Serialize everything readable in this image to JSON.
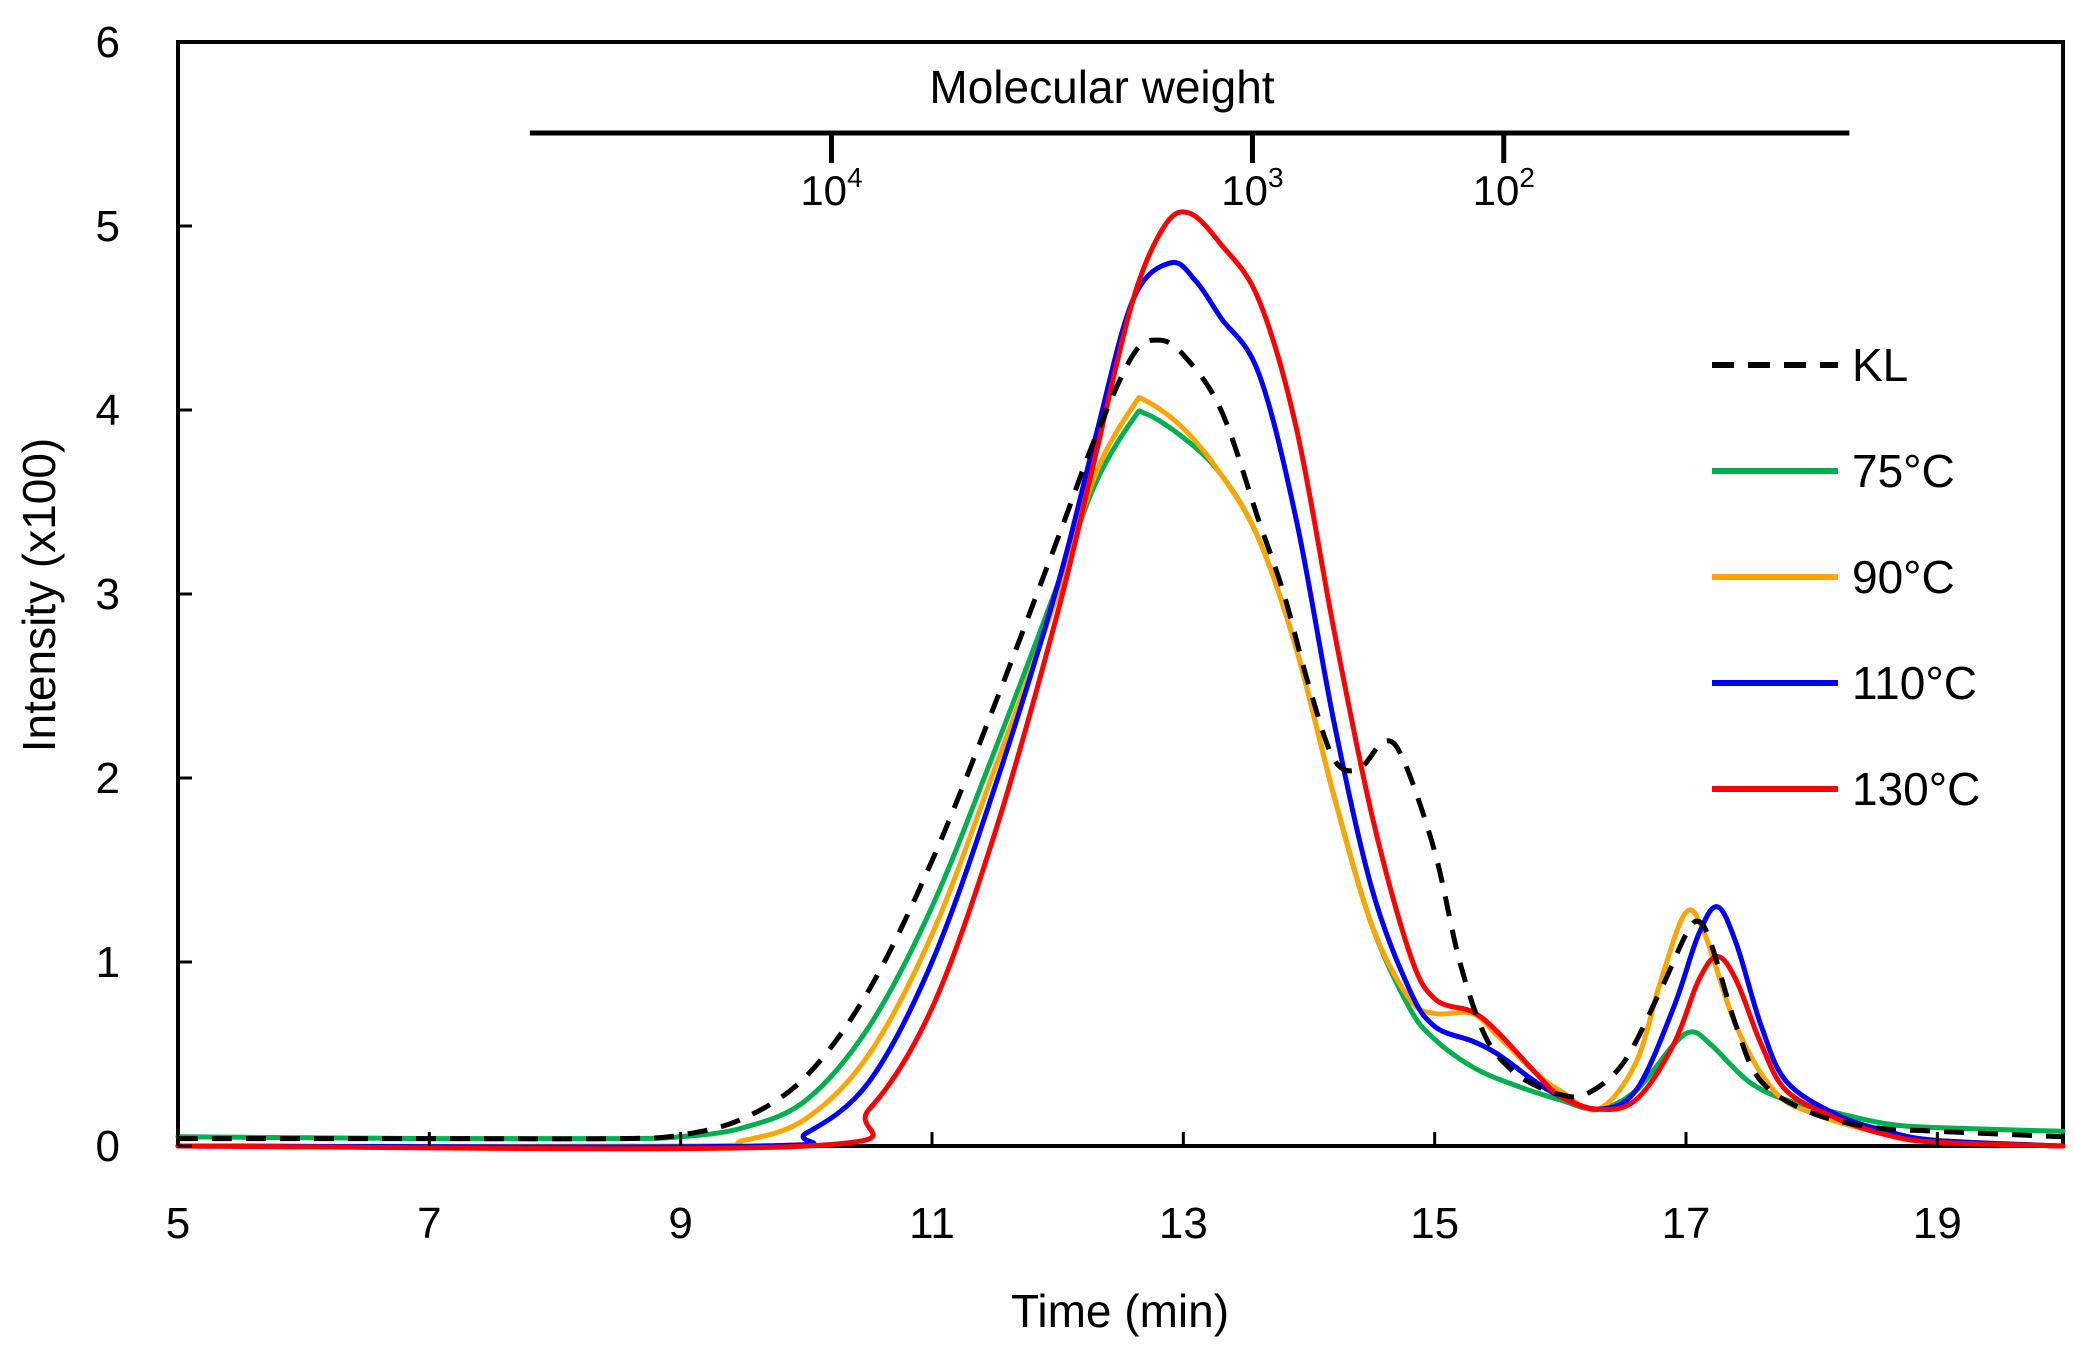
{
  "chart_data": {
    "type": "line",
    "xlabel": "Time (min)",
    "ylabel": "Intensity (x100)",
    "xlim": [
      5,
      20
    ],
    "ylim": [
      0,
      6
    ],
    "xticks": [
      5,
      7,
      9,
      11,
      13,
      15,
      17,
      19
    ],
    "yticks": [
      0,
      1,
      2,
      3,
      4,
      5,
      6
    ],
    "grid": false,
    "legend_position": "right",
    "secondary_axis": {
      "title": "Molecular weight",
      "range_time": [
        7.8,
        18.3
      ],
      "ticks": [
        {
          "base": "10",
          "exp": "4",
          "time": 10.2
        },
        {
          "base": "10",
          "exp": "3",
          "time": 13.55
        },
        {
          "base": "10",
          "exp": "2",
          "time": 15.55
        }
      ]
    },
    "series": [
      {
        "name": "KL",
        "color": "#000000",
        "dashed": true,
        "points": [
          [
            5,
            0.04
          ],
          [
            7,
            0.04
          ],
          [
            8.5,
            0.04
          ],
          [
            9,
            0.06
          ],
          [
            9.5,
            0.15
          ],
          [
            10,
            0.38
          ],
          [
            10.5,
            0.85
          ],
          [
            11,
            1.55
          ],
          [
            11.5,
            2.4
          ],
          [
            12,
            3.3
          ],
          [
            12.3,
            3.85
          ],
          [
            12.6,
            4.3
          ],
          [
            12.8,
            4.38
          ],
          [
            13,
            4.3
          ],
          [
            13.3,
            4.0
          ],
          [
            13.6,
            3.4
          ],
          [
            13.8,
            3.0
          ],
          [
            14,
            2.5
          ],
          [
            14.2,
            2.1
          ],
          [
            14.4,
            2.05
          ],
          [
            14.6,
            2.2
          ],
          [
            14.75,
            2.1
          ],
          [
            15,
            1.6
          ],
          [
            15.2,
            1.0
          ],
          [
            15.4,
            0.6
          ],
          [
            15.6,
            0.42
          ],
          [
            15.8,
            0.33
          ],
          [
            16,
            0.28
          ],
          [
            16.2,
            0.28
          ],
          [
            16.5,
            0.45
          ],
          [
            16.8,
            0.85
          ],
          [
            17,
            1.15
          ],
          [
            17.1,
            1.22
          ],
          [
            17.2,
            1.1
          ],
          [
            17.4,
            0.65
          ],
          [
            17.6,
            0.35
          ],
          [
            18,
            0.18
          ],
          [
            18.5,
            0.1
          ],
          [
            19,
            0.08
          ],
          [
            20,
            0.05
          ]
        ]
      },
      {
        "name": "75°C",
        "color": "#00b050",
        "dashed": false,
        "points": [
          [
            5,
            0.05
          ],
          [
            7,
            0.04
          ],
          [
            8.5,
            0.04
          ],
          [
            9,
            0.05
          ],
          [
            9.5,
            0.1
          ],
          [
            10,
            0.25
          ],
          [
            10.5,
            0.65
          ],
          [
            11,
            1.3
          ],
          [
            11.5,
            2.15
          ],
          [
            12,
            3.05
          ],
          [
            12.3,
            3.6
          ],
          [
            12.6,
            3.95
          ],
          [
            12.7,
            3.98
          ],
          [
            13,
            3.85
          ],
          [
            13.3,
            3.65
          ],
          [
            13.6,
            3.3
          ],
          [
            13.9,
            2.7
          ],
          [
            14.2,
            1.9
          ],
          [
            14.5,
            1.2
          ],
          [
            14.8,
            0.75
          ],
          [
            15,
            0.58
          ],
          [
            15.3,
            0.43
          ],
          [
            15.6,
            0.34
          ],
          [
            16,
            0.25
          ],
          [
            16.3,
            0.2
          ],
          [
            16.6,
            0.3
          ],
          [
            16.9,
            0.55
          ],
          [
            17.05,
            0.62
          ],
          [
            17.2,
            0.55
          ],
          [
            17.5,
            0.35
          ],
          [
            17.8,
            0.25
          ],
          [
            18.2,
            0.18
          ],
          [
            18.6,
            0.12
          ],
          [
            19,
            0.1
          ],
          [
            20,
            0.08
          ]
        ]
      },
      {
        "name": "90°C",
        "color": "#ffa500",
        "dashed": false,
        "points": [
          [
            5,
            0.0
          ],
          [
            9,
            0.0
          ],
          [
            9.5,
            0.03
          ],
          [
            10,
            0.15
          ],
          [
            10.5,
            0.5
          ],
          [
            11,
            1.15
          ],
          [
            11.5,
            2.05
          ],
          [
            12,
            3.0
          ],
          [
            12.3,
            3.65
          ],
          [
            12.6,
            4.02
          ],
          [
            12.7,
            4.05
          ],
          [
            13,
            3.9
          ],
          [
            13.3,
            3.65
          ],
          [
            13.6,
            3.3
          ],
          [
            13.9,
            2.7
          ],
          [
            14.2,
            1.9
          ],
          [
            14.5,
            1.2
          ],
          [
            14.8,
            0.8
          ],
          [
            15,
            0.72
          ],
          [
            15.3,
            0.72
          ],
          [
            15.5,
            0.6
          ],
          [
            15.8,
            0.4
          ],
          [
            16,
            0.3
          ],
          [
            16.3,
            0.2
          ],
          [
            16.6,
            0.45
          ],
          [
            16.8,
            0.9
          ],
          [
            17,
            1.27
          ],
          [
            17.15,
            1.15
          ],
          [
            17.4,
            0.65
          ],
          [
            17.7,
            0.3
          ],
          [
            18,
            0.18
          ],
          [
            18.5,
            0.08
          ],
          [
            19,
            0.03
          ],
          [
            20,
            0.0
          ]
        ]
      },
      {
        "name": "110°C",
        "color": "#0000ff",
        "dashed": false,
        "points": [
          [
            5,
            0.0
          ],
          [
            9.6,
            0.0
          ],
          [
            10,
            0.07
          ],
          [
            10.5,
            0.35
          ],
          [
            11,
            1.0
          ],
          [
            11.5,
            1.95
          ],
          [
            12,
            3.05
          ],
          [
            12.3,
            3.85
          ],
          [
            12.6,
            4.6
          ],
          [
            12.9,
            4.8
          ],
          [
            13.1,
            4.7
          ],
          [
            13.3,
            4.5
          ],
          [
            13.6,
            4.2
          ],
          [
            13.9,
            3.4
          ],
          [
            14.2,
            2.3
          ],
          [
            14.5,
            1.4
          ],
          [
            14.8,
            0.85
          ],
          [
            15,
            0.65
          ],
          [
            15.3,
            0.57
          ],
          [
            15.5,
            0.5
          ],
          [
            15.8,
            0.35
          ],
          [
            16,
            0.27
          ],
          [
            16.3,
            0.2
          ],
          [
            16.6,
            0.3
          ],
          [
            16.9,
            0.75
          ],
          [
            17.1,
            1.15
          ],
          [
            17.25,
            1.3
          ],
          [
            17.4,
            1.1
          ],
          [
            17.6,
            0.65
          ],
          [
            17.8,
            0.35
          ],
          [
            18.2,
            0.17
          ],
          [
            18.6,
            0.08
          ],
          [
            19,
            0.03
          ],
          [
            20,
            0.0
          ]
        ]
      },
      {
        "name": "130°C",
        "color": "#ff0000",
        "dashed": false,
        "points": [
          [
            5,
            0.0
          ],
          [
            10,
            0.0
          ],
          [
            10.5,
            0.2
          ],
          [
            11,
            0.75
          ],
          [
            11.5,
            1.7
          ],
          [
            12,
            2.9
          ],
          [
            12.3,
            3.75
          ],
          [
            12.6,
            4.6
          ],
          [
            12.85,
            5.0
          ],
          [
            13.05,
            5.07
          ],
          [
            13.3,
            4.9
          ],
          [
            13.6,
            4.6
          ],
          [
            13.9,
            3.9
          ],
          [
            14.2,
            2.8
          ],
          [
            14.5,
            1.8
          ],
          [
            14.8,
            1.05
          ],
          [
            15,
            0.8
          ],
          [
            15.3,
            0.73
          ],
          [
            15.5,
            0.62
          ],
          [
            15.8,
            0.4
          ],
          [
            16,
            0.27
          ],
          [
            16.3,
            0.2
          ],
          [
            16.6,
            0.25
          ],
          [
            16.9,
            0.55
          ],
          [
            17.1,
            0.9
          ],
          [
            17.25,
            1.03
          ],
          [
            17.4,
            0.9
          ],
          [
            17.6,
            0.55
          ],
          [
            17.8,
            0.3
          ],
          [
            18.2,
            0.15
          ],
          [
            18.6,
            0.06
          ],
          [
            19,
            0.02
          ],
          [
            20,
            0.0
          ]
        ]
      }
    ]
  }
}
